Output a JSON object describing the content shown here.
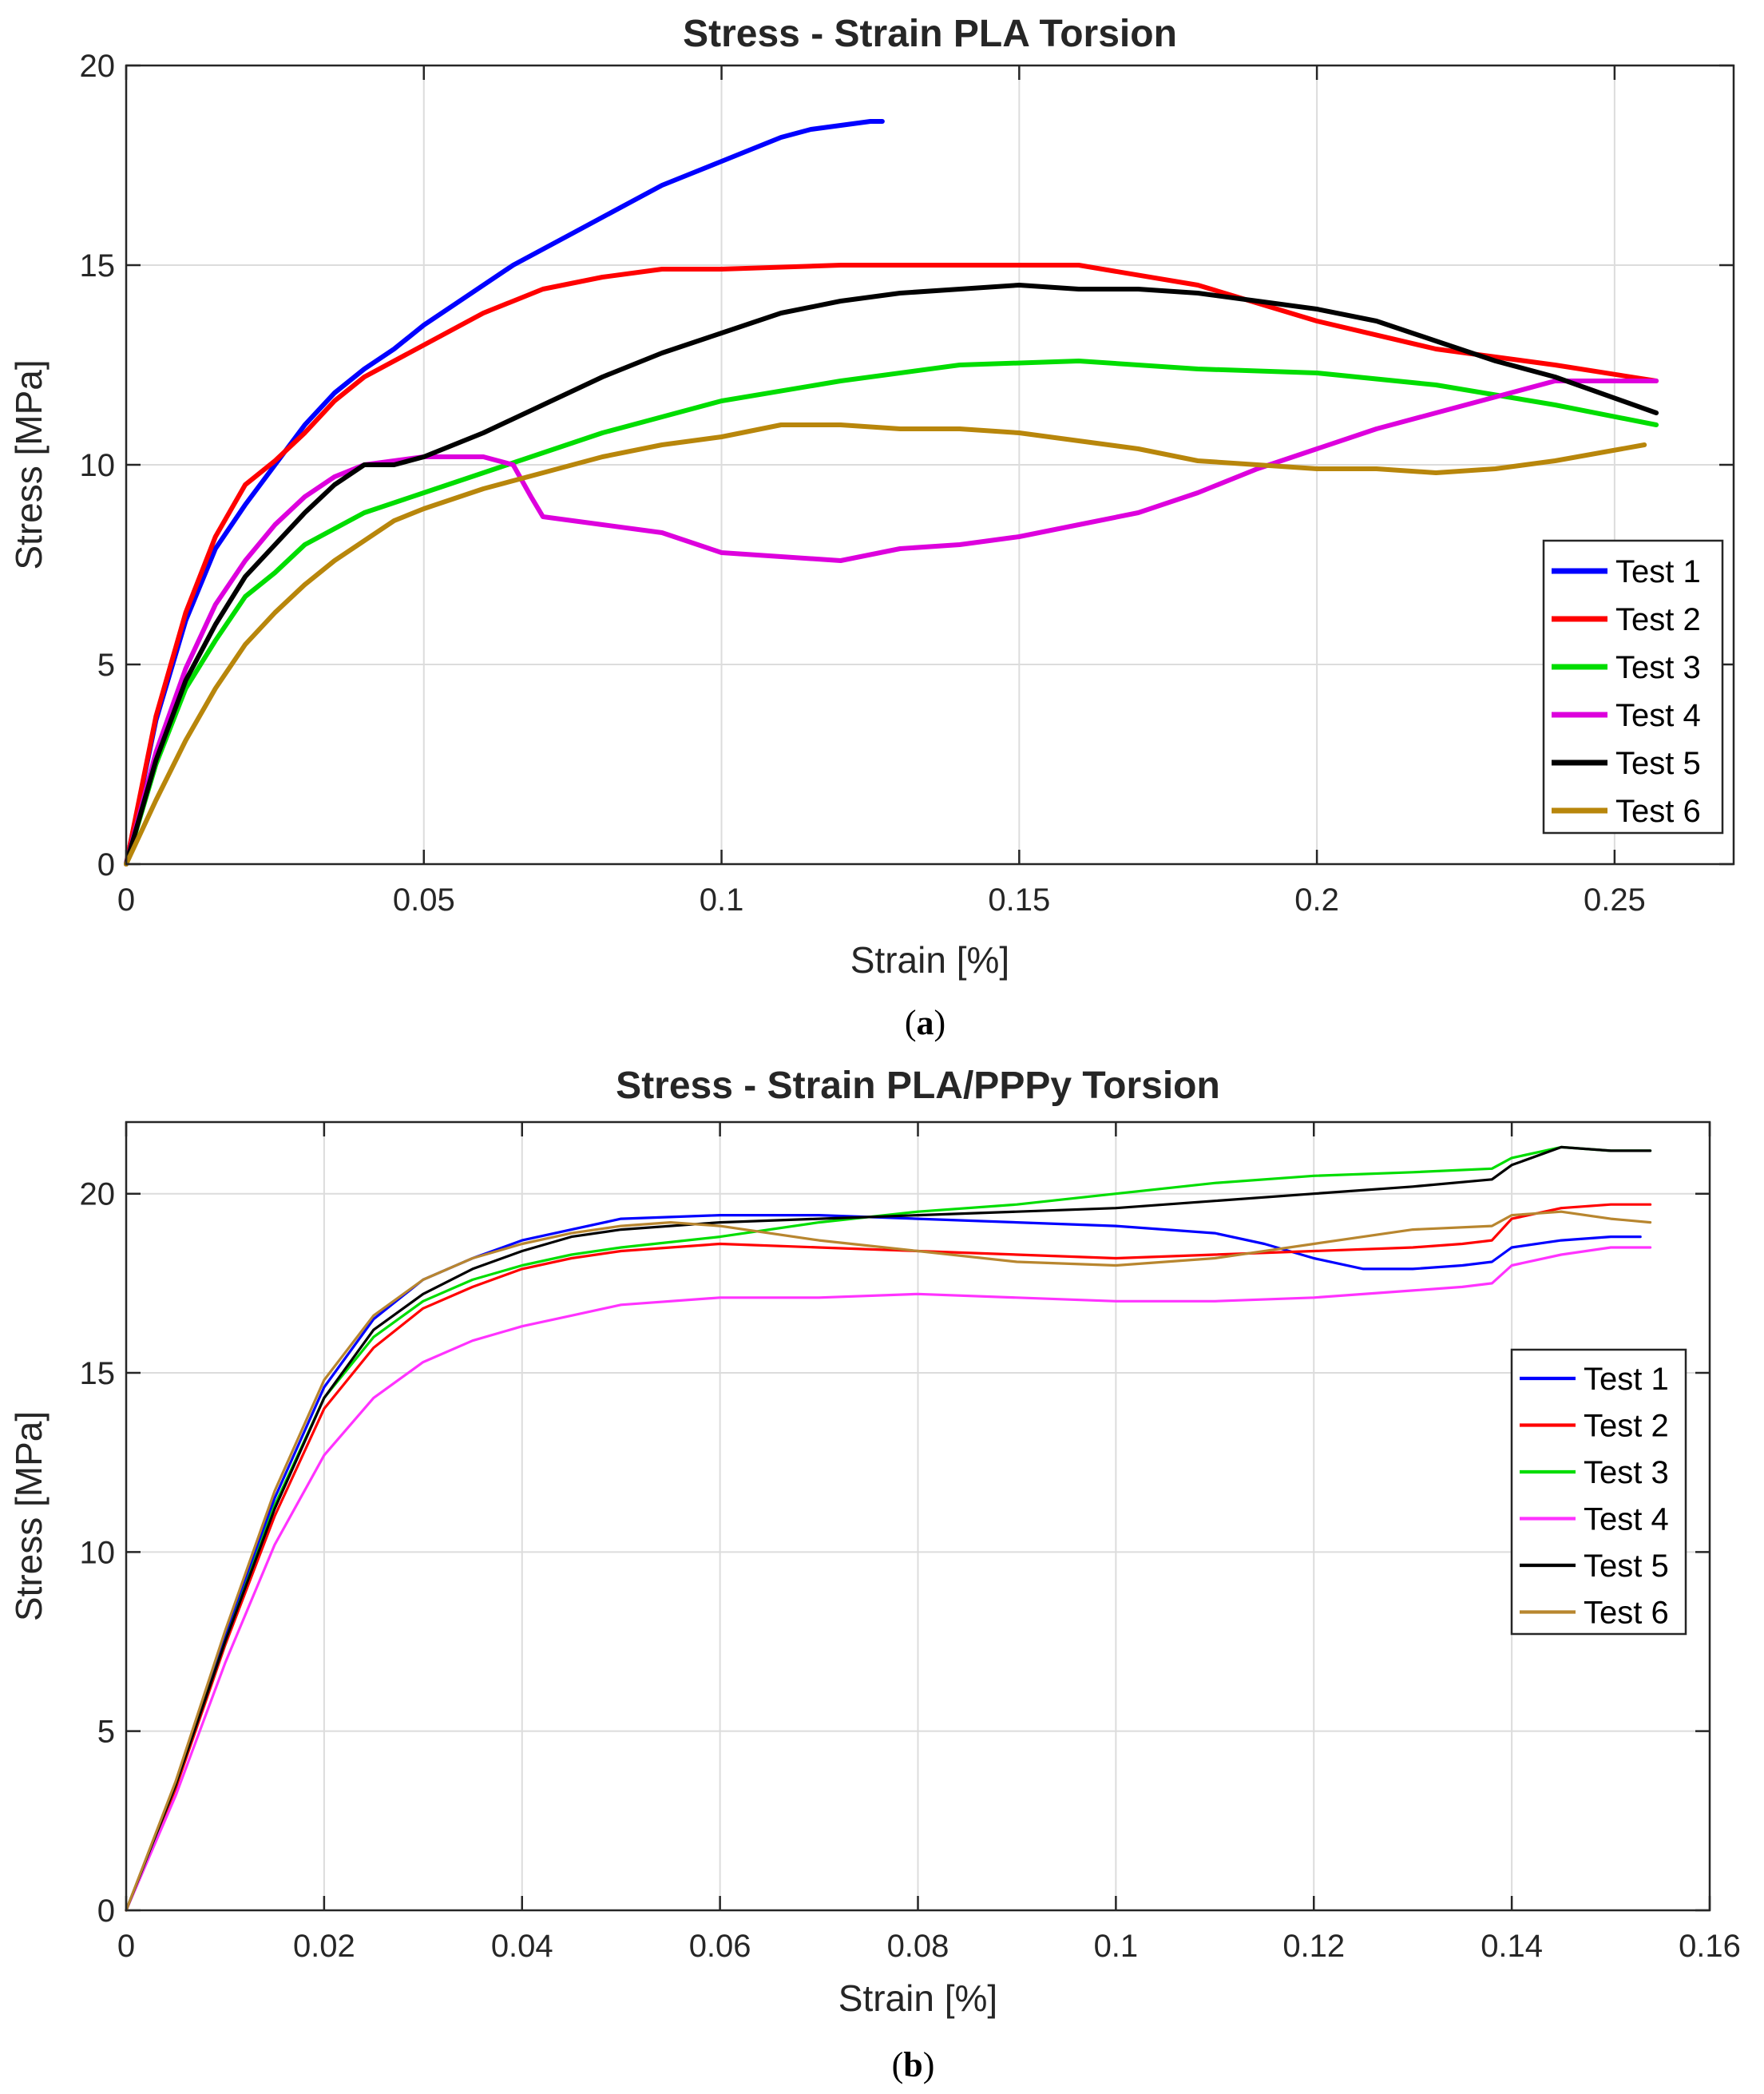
{
  "chart_data": [
    {
      "type": "line",
      "title": "Stress - Strain PLA Torsion",
      "xlabel": "Strain [%]",
      "ylabel": "Stress [MPa]",
      "xlim": [
        0,
        0.27
      ],
      "ylim": [
        0,
        20
      ],
      "xticks": [
        0,
        0.05,
        0.1,
        0.15,
        0.2,
        0.25
      ],
      "xtick_labels": [
        "0",
        "0.05",
        "0.1",
        "0.15",
        "0.2",
        "0.25"
      ],
      "yticks": [
        0,
        5,
        10,
        15,
        20
      ],
      "ytick_labels": [
        "0",
        "5",
        "10",
        "15",
        "20"
      ],
      "grid": true,
      "legend_position": "bottom-right",
      "caption_letter": "a",
      "series": [
        {
          "name": "Test 1",
          "color": "#0000ff",
          "x": [
            0,
            0.005,
            0.01,
            0.015,
            0.02,
            0.025,
            0.03,
            0.035,
            0.04,
            0.045,
            0.05,
            0.055,
            0.06,
            0.065,
            0.07,
            0.075,
            0.08,
            0.085,
            0.09,
            0.095,
            0.1,
            0.105,
            0.11,
            0.115,
            0.12,
            0.125,
            0.127
          ],
          "y": [
            0,
            3.6,
            6.1,
            7.9,
            9.0,
            10.0,
            11.0,
            11.8,
            12.4,
            12.9,
            13.5,
            14.0,
            14.5,
            15.0,
            15.4,
            15.8,
            16.2,
            16.6,
            17.0,
            17.3,
            17.6,
            17.9,
            18.2,
            18.4,
            18.5,
            18.6,
            18.6
          ]
        },
        {
          "name": "Test 2",
          "color": "#ff0000",
          "x": [
            0,
            0.005,
            0.01,
            0.015,
            0.02,
            0.025,
            0.03,
            0.035,
            0.04,
            0.05,
            0.06,
            0.07,
            0.08,
            0.09,
            0.1,
            0.12,
            0.14,
            0.16,
            0.18,
            0.2,
            0.22,
            0.24,
            0.257
          ],
          "y": [
            0,
            3.7,
            6.3,
            8.2,
            9.5,
            10.1,
            10.8,
            11.6,
            12.2,
            13.0,
            13.8,
            14.4,
            14.7,
            14.9,
            14.9,
            15.0,
            15.0,
            15.0,
            14.5,
            13.6,
            12.9,
            12.5,
            12.1
          ]
        },
        {
          "name": "Test 3",
          "color": "#00dd00",
          "x": [
            0,
            0.005,
            0.01,
            0.015,
            0.02,
            0.025,
            0.03,
            0.035,
            0.04,
            0.05,
            0.06,
            0.07,
            0.08,
            0.09,
            0.1,
            0.12,
            0.14,
            0.16,
            0.18,
            0.2,
            0.22,
            0.24,
            0.257
          ],
          "y": [
            0,
            2.5,
            4.4,
            5.6,
            6.7,
            7.3,
            8.0,
            8.4,
            8.8,
            9.3,
            9.8,
            10.3,
            10.8,
            11.2,
            11.6,
            12.1,
            12.5,
            12.6,
            12.4,
            12.3,
            12.0,
            11.5,
            11.0
          ]
        },
        {
          "name": "Test 4",
          "color": "#dd00dd",
          "x": [
            0,
            0.005,
            0.01,
            0.015,
            0.02,
            0.025,
            0.03,
            0.035,
            0.04,
            0.045,
            0.05,
            0.055,
            0.06,
            0.065,
            0.068,
            0.07,
            0.08,
            0.09,
            0.1,
            0.11,
            0.12,
            0.13,
            0.14,
            0.15,
            0.16,
            0.17,
            0.18,
            0.19,
            0.2,
            0.21,
            0.22,
            0.23,
            0.24,
            0.257
          ],
          "y": [
            0,
            2.8,
            4.9,
            6.5,
            7.6,
            8.5,
            9.2,
            9.7,
            10.0,
            10.1,
            10.2,
            10.2,
            10.2,
            10.0,
            9.2,
            8.7,
            8.5,
            8.3,
            7.8,
            7.7,
            7.6,
            7.9,
            8.0,
            8.2,
            8.5,
            8.8,
            9.3,
            9.9,
            10.4,
            10.9,
            11.3,
            11.7,
            12.1,
            12.1
          ]
        },
        {
          "name": "Test 5",
          "color": "#000000",
          "x": [
            0,
            0.005,
            0.01,
            0.015,
            0.02,
            0.025,
            0.03,
            0.035,
            0.04,
            0.045,
            0.05,
            0.06,
            0.07,
            0.08,
            0.09,
            0.1,
            0.11,
            0.12,
            0.13,
            0.14,
            0.15,
            0.16,
            0.17,
            0.18,
            0.19,
            0.2,
            0.21,
            0.22,
            0.23,
            0.24,
            0.257
          ],
          "y": [
            0,
            2.6,
            4.6,
            6.0,
            7.2,
            8.0,
            8.8,
            9.5,
            10.0,
            10.0,
            10.2,
            10.8,
            11.5,
            12.2,
            12.8,
            13.3,
            13.8,
            14.1,
            14.3,
            14.4,
            14.5,
            14.4,
            14.4,
            14.3,
            14.1,
            13.9,
            13.6,
            13.1,
            12.6,
            12.2,
            11.3
          ]
        },
        {
          "name": "Test 6",
          "color": "#b8860b",
          "x": [
            0,
            0.005,
            0.01,
            0.015,
            0.02,
            0.025,
            0.03,
            0.035,
            0.04,
            0.045,
            0.05,
            0.06,
            0.07,
            0.08,
            0.09,
            0.1,
            0.11,
            0.12,
            0.13,
            0.14,
            0.15,
            0.16,
            0.17,
            0.18,
            0.19,
            0.2,
            0.21,
            0.22,
            0.23,
            0.24,
            0.255
          ],
          "y": [
            0,
            1.6,
            3.1,
            4.4,
            5.5,
            6.3,
            7.0,
            7.6,
            8.1,
            8.6,
            8.9,
            9.4,
            9.8,
            10.2,
            10.5,
            10.7,
            11.0,
            11.0,
            10.9,
            10.9,
            10.8,
            10.6,
            10.4,
            10.1,
            10.0,
            9.9,
            9.9,
            9.8,
            9.9,
            10.1,
            10.5
          ]
        }
      ]
    },
    {
      "type": "line",
      "title": "Stress - Strain PLA/PPPy Torsion",
      "xlabel": "Strain [%]",
      "ylabel": "Stress [MPa]",
      "xlim": [
        0,
        0.16
      ],
      "ylim": [
        0,
        22
      ],
      "xticks": [
        0,
        0.02,
        0.04,
        0.06,
        0.08,
        0.1,
        0.12,
        0.14,
        0.16
      ],
      "xtick_labels": [
        "0",
        "0.02",
        "0.04",
        "0.06",
        "0.08",
        "0.1",
        "0.12",
        "0.14",
        "0.16"
      ],
      "yticks": [
        0,
        5,
        10,
        15,
        20
      ],
      "ytick_labels": [
        "0",
        "5",
        "10",
        "15",
        "20"
      ],
      "grid": true,
      "legend_position": "right",
      "caption_letter": "b",
      "series": [
        {
          "name": "Test 1",
          "color": "#0000ff",
          "x": [
            0,
            0.005,
            0.01,
            0.015,
            0.02,
            0.025,
            0.03,
            0.035,
            0.04,
            0.045,
            0.05,
            0.06,
            0.07,
            0.08,
            0.09,
            0.1,
            0.11,
            0.115,
            0.12,
            0.125,
            0.13,
            0.135,
            0.138,
            0.14,
            0.145,
            0.15,
            0.153
          ],
          "y": [
            0,
            3.5,
            7.6,
            11.5,
            14.6,
            16.5,
            17.6,
            18.2,
            18.7,
            19.0,
            19.3,
            19.4,
            19.4,
            19.3,
            19.2,
            19.1,
            18.9,
            18.6,
            18.2,
            17.9,
            17.9,
            18.0,
            18.1,
            18.5,
            18.7,
            18.8,
            18.8
          ]
        },
        {
          "name": "Test 2",
          "color": "#ff0000",
          "x": [
            0,
            0.005,
            0.01,
            0.015,
            0.02,
            0.025,
            0.03,
            0.035,
            0.04,
            0.045,
            0.05,
            0.06,
            0.07,
            0.08,
            0.09,
            0.1,
            0.11,
            0.12,
            0.13,
            0.135,
            0.138,
            0.14,
            0.145,
            0.15,
            0.154
          ],
          "y": [
            0,
            3.4,
            7.4,
            11.0,
            14.0,
            15.7,
            16.8,
            17.4,
            17.9,
            18.2,
            18.4,
            18.6,
            18.5,
            18.4,
            18.3,
            18.2,
            18.3,
            18.4,
            18.5,
            18.6,
            18.7,
            19.3,
            19.6,
            19.7,
            19.7
          ]
        },
        {
          "name": "Test 3",
          "color": "#00dd00",
          "x": [
            0,
            0.005,
            0.01,
            0.015,
            0.02,
            0.025,
            0.03,
            0.035,
            0.04,
            0.045,
            0.05,
            0.06,
            0.07,
            0.08,
            0.09,
            0.1,
            0.11,
            0.12,
            0.13,
            0.138,
            0.14,
            0.145,
            0.15,
            0.154
          ],
          "y": [
            0,
            3.5,
            7.5,
            11.3,
            14.3,
            16.0,
            17.0,
            17.6,
            18.0,
            18.3,
            18.5,
            18.8,
            19.2,
            19.5,
            19.7,
            20.0,
            20.3,
            20.5,
            20.6,
            20.7,
            21.0,
            21.3,
            21.2,
            21.2
          ]
        },
        {
          "name": "Test 4",
          "color": "#ff33ff",
          "x": [
            0,
            0.005,
            0.01,
            0.015,
            0.02,
            0.025,
            0.03,
            0.035,
            0.04,
            0.045,
            0.05,
            0.06,
            0.07,
            0.08,
            0.09,
            0.1,
            0.11,
            0.12,
            0.13,
            0.135,
            0.138,
            0.14,
            0.145,
            0.15,
            0.154
          ],
          "y": [
            0,
            3.2,
            6.9,
            10.2,
            12.7,
            14.3,
            15.3,
            15.9,
            16.3,
            16.6,
            16.9,
            17.1,
            17.1,
            17.2,
            17.1,
            17.0,
            17.0,
            17.1,
            17.3,
            17.4,
            17.5,
            18.0,
            18.3,
            18.5,
            18.5
          ]
        },
        {
          "name": "Test 5",
          "color": "#000000",
          "x": [
            0,
            0.005,
            0.01,
            0.015,
            0.02,
            0.025,
            0.03,
            0.035,
            0.04,
            0.045,
            0.05,
            0.06,
            0.07,
            0.08,
            0.09,
            0.1,
            0.11,
            0.12,
            0.13,
            0.138,
            0.14,
            0.145,
            0.15,
            0.154
          ],
          "y": [
            0,
            3.5,
            7.5,
            11.2,
            14.3,
            16.2,
            17.2,
            17.9,
            18.4,
            18.8,
            19.0,
            19.2,
            19.3,
            19.4,
            19.5,
            19.6,
            19.8,
            20.0,
            20.2,
            20.4,
            20.8,
            21.3,
            21.2,
            21.2
          ]
        },
        {
          "name": "Test 6",
          "color": "#b8862f",
          "x": [
            0,
            0.005,
            0.01,
            0.015,
            0.02,
            0.025,
            0.03,
            0.035,
            0.04,
            0.045,
            0.05,
            0.055,
            0.06,
            0.07,
            0.08,
            0.09,
            0.1,
            0.11,
            0.12,
            0.13,
            0.138,
            0.14,
            0.145,
            0.15,
            0.154
          ],
          "y": [
            0,
            3.6,
            7.8,
            11.7,
            14.8,
            16.6,
            17.6,
            18.2,
            18.6,
            18.9,
            19.1,
            19.2,
            19.1,
            18.7,
            18.4,
            18.1,
            18.0,
            18.2,
            18.6,
            19.0,
            19.1,
            19.4,
            19.5,
            19.3,
            19.2
          ]
        }
      ]
    }
  ]
}
